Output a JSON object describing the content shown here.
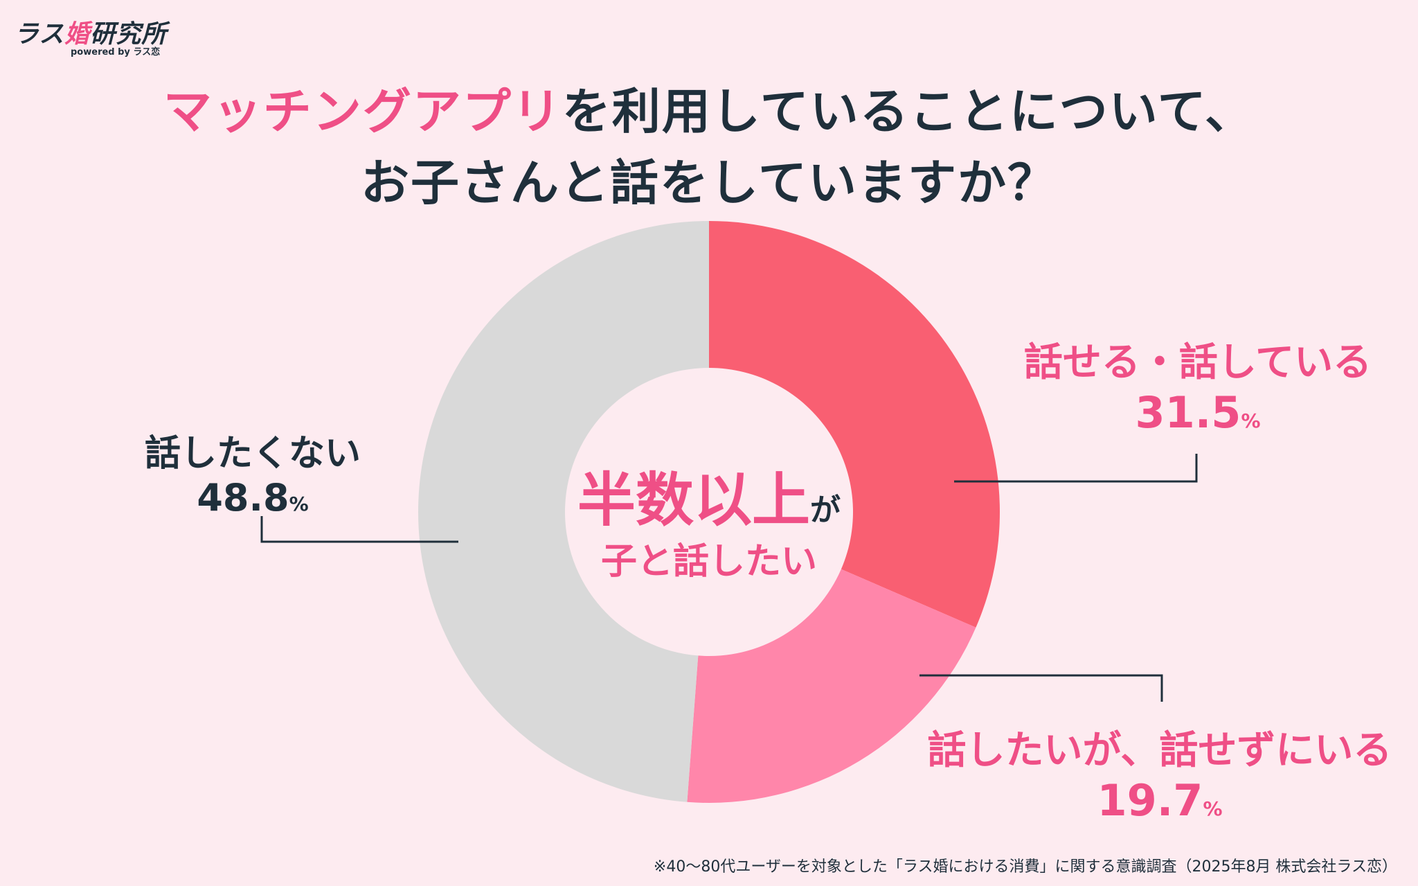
{
  "logo": {
    "name_prefix": "ラス",
    "name_accent": "婚",
    "name_suffix": "研究所",
    "powered_by": "powered by ラス恋"
  },
  "title": {
    "line1_highlight": "マッチングアプリ",
    "line1_rest": "を利用していることについて、",
    "line2": "お子さんと話をしていますか？"
  },
  "center": {
    "big": "半数以上",
    "particle": "が",
    "small": "子と話したい"
  },
  "footnote": "※40〜80代ユーザーを対象とした「ラス婚における消費」に関する意識調査（2025年8月 株式会社ラス恋）",
  "colors": {
    "slice1": "#f95f72",
    "slice2": "#ff86aa",
    "slice3": "#d9d9d9",
    "accent": "#ef4f86",
    "text": "#1f2f3b"
  },
  "chart_data": {
    "type": "pie",
    "style": "donut",
    "categories": [
      "話せる・話している",
      "話したいが、話せずにいる",
      "話したくない"
    ],
    "values": [
      31.5,
      19.7,
      48.8
    ],
    "labels": [
      {
        "category": "話せる・話している",
        "value": "31.5",
        "unit": "%"
      },
      {
        "category": "話したいが、話せずにいる",
        "value": "19.7",
        "unit": "%"
      },
      {
        "category": "話したくない",
        "value": "48.8",
        "unit": "%"
      }
    ]
  }
}
